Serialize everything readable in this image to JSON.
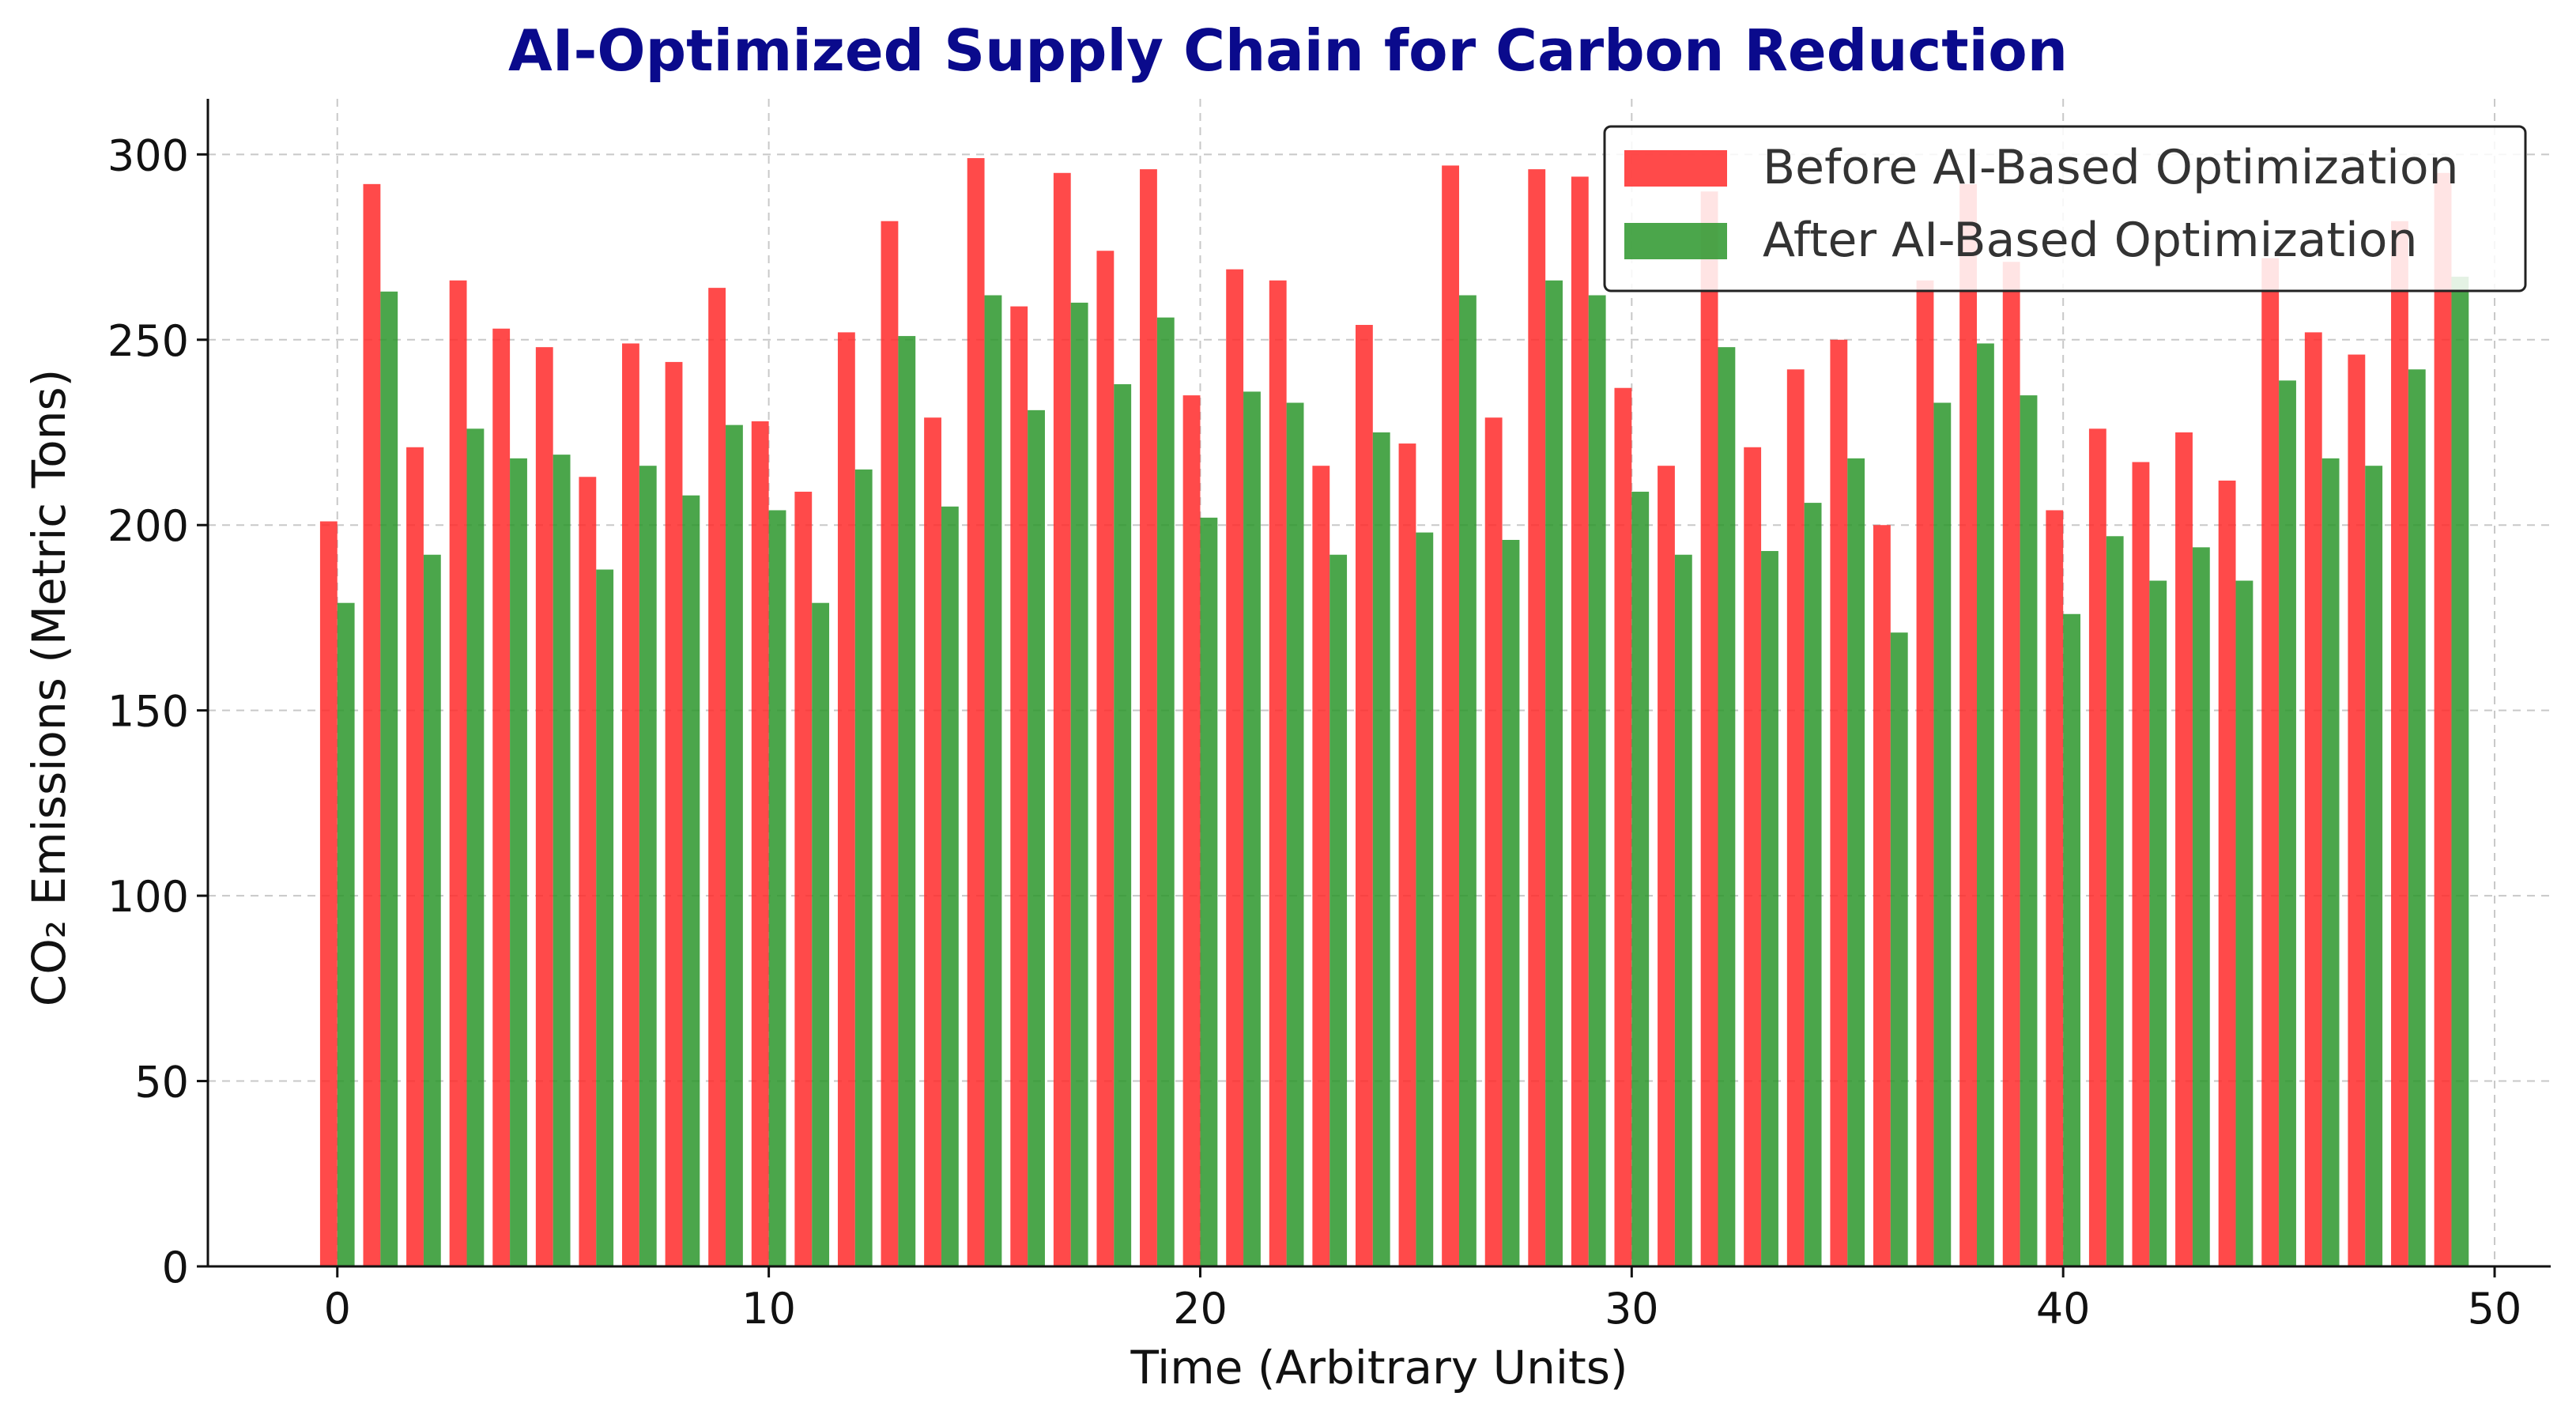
{
  "chart_data": {
    "type": "bar",
    "title": "AI-Optimized Supply Chain for Carbon Reduction",
    "xlabel": "Time (Arbitrary Units)",
    "ylabel": "CO₂ Emissions (Metric Tons)",
    "xlim": [
      -3,
      51.3
    ],
    "ylim": [
      0,
      315
    ],
    "xticks": [
      0,
      10,
      20,
      30,
      40,
      50
    ],
    "yticks": [
      0,
      50,
      100,
      150,
      200,
      250,
      300
    ],
    "grid": true,
    "legend_position": "top-right",
    "x": [
      0,
      1,
      2,
      3,
      4,
      5,
      6,
      7,
      8,
      9,
      10,
      11,
      12,
      13,
      14,
      15,
      16,
      17,
      18,
      19,
      20,
      21,
      22,
      23,
      24,
      25,
      26,
      27,
      28,
      29,
      30,
      31,
      32,
      33,
      34,
      35,
      36,
      37,
      38,
      39,
      40,
      41,
      42,
      43,
      44,
      45,
      46,
      47,
      48,
      49
    ],
    "series": [
      {
        "name": "Before AI-Based Optimization",
        "color": "#ff2a2a",
        "values": [
          201,
          292,
          221,
          266,
          253,
          248,
          213,
          249,
          244,
          264,
          228,
          209,
          252,
          282,
          229,
          299,
          259,
          295,
          274,
          296,
          235,
          269,
          266,
          216,
          254,
          222,
          297,
          229,
          296,
          294,
          237,
          216,
          290,
          221,
          242,
          250,
          200,
          266,
          292,
          271,
          204,
          226,
          217,
          225,
          212,
          272,
          252,
          246,
          282,
          295
        ]
      },
      {
        "name": "After AI-Based Optimization",
        "color": "#2c962c",
        "values": [
          179,
          263,
          192,
          226,
          218,
          219,
          188,
          216,
          208,
          227,
          204,
          179,
          215,
          251,
          205,
          262,
          231,
          260,
          238,
          256,
          202,
          236,
          233,
          192,
          225,
          198,
          262,
          196,
          266,
          262,
          209,
          192,
          248,
          193,
          206,
          218,
          171,
          233,
          249,
          235,
          176,
          197,
          185,
          194,
          185,
          239,
          218,
          216,
          242,
          267
        ]
      }
    ]
  }
}
